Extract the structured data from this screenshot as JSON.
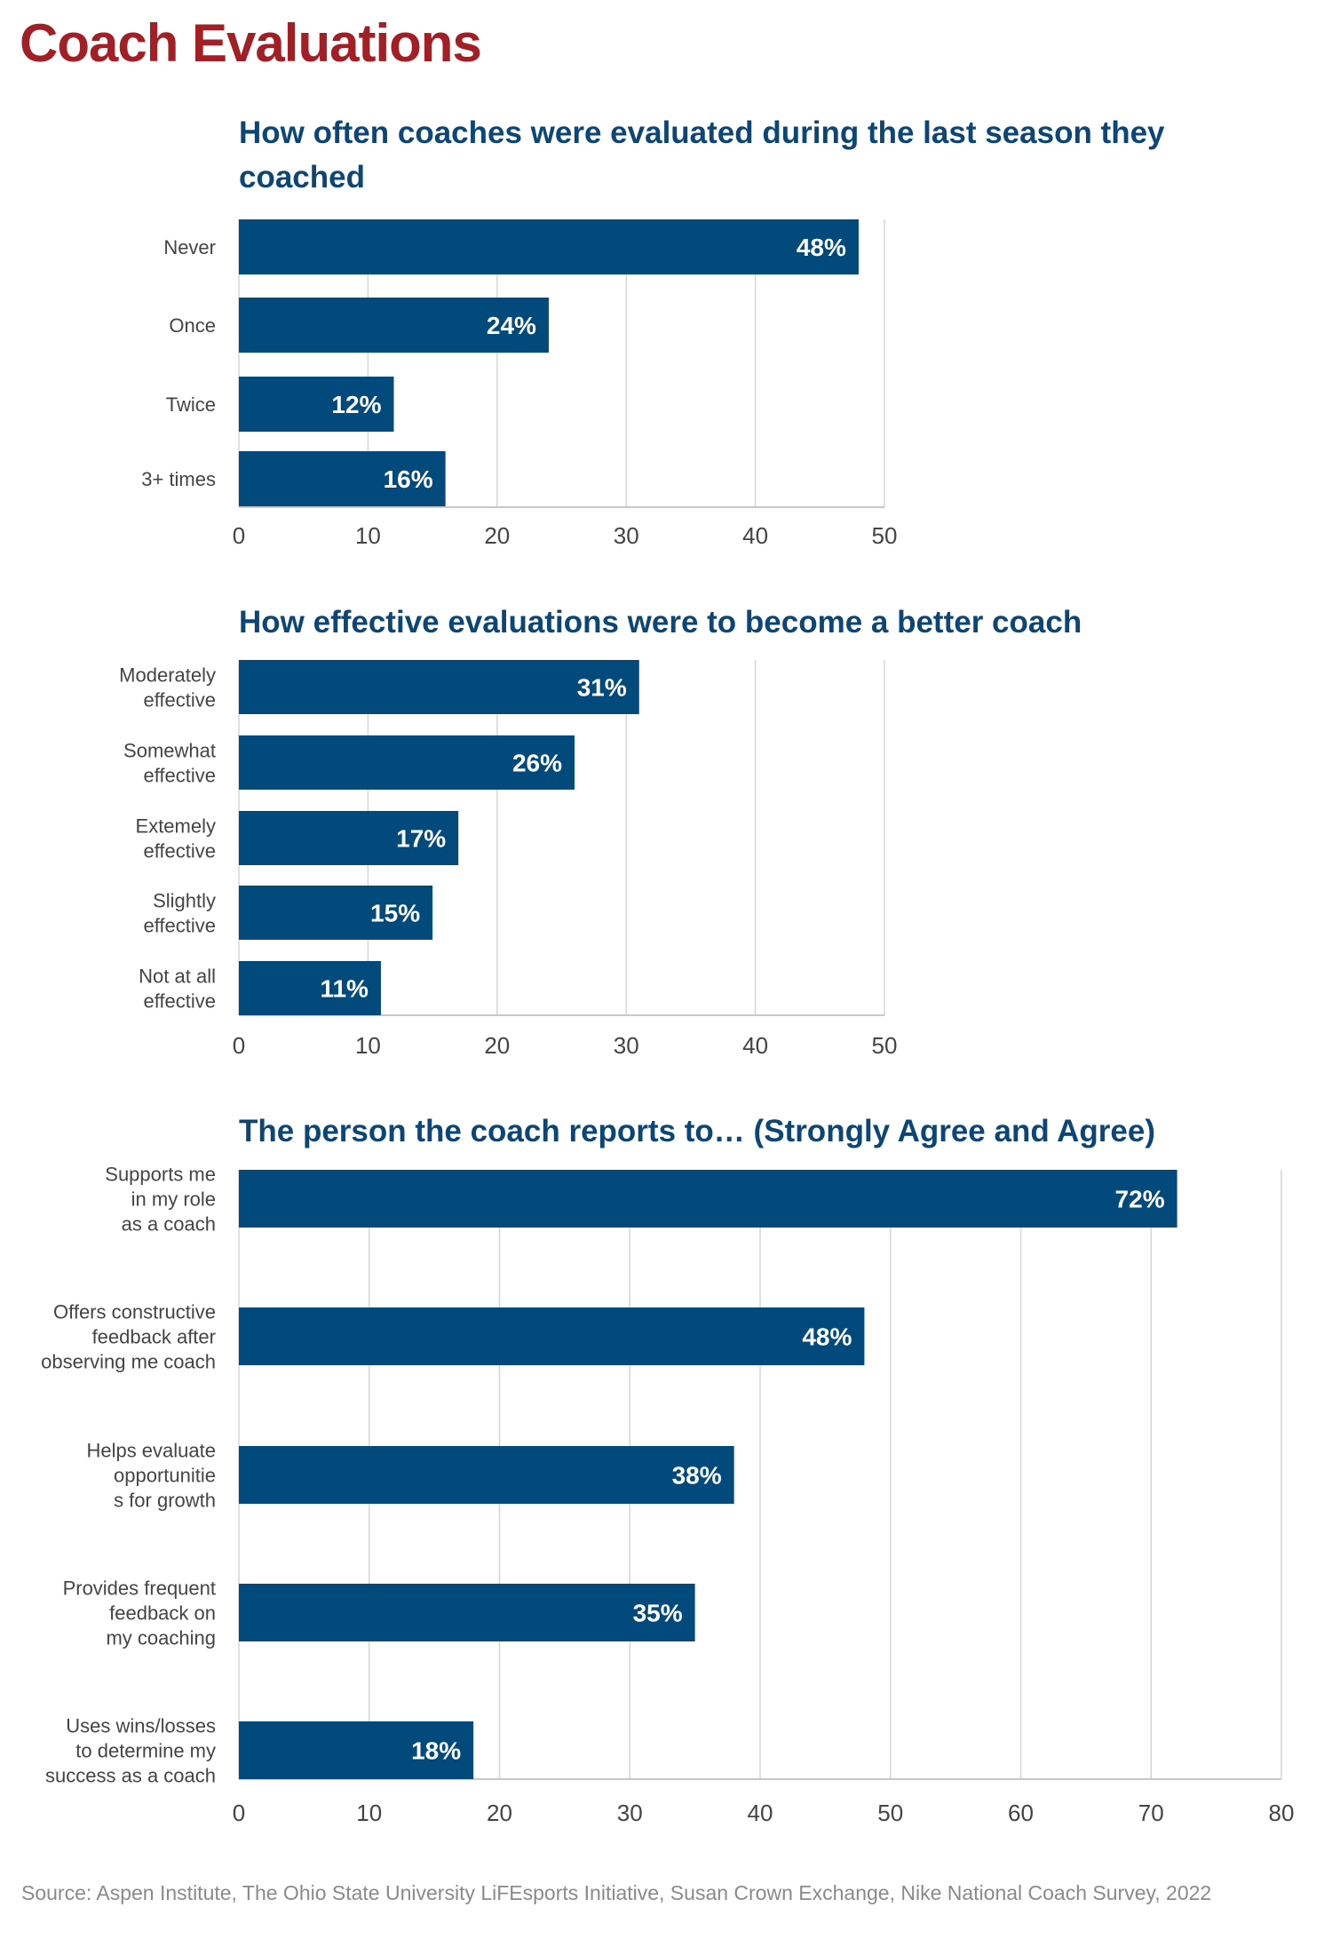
{
  "title": "Coach Evaluations",
  "source": "Source: Aspen Institute, The Ohio State University LiFEsports Initiative, Susan Crown Exchange, Nike National Coach Survey, 2022",
  "colors": {
    "bar": "#034a7c",
    "title": "#a31f26",
    "chart_title": "#0b4677",
    "grid": "#d6d6d6"
  },
  "chart_data": [
    {
      "type": "bar",
      "orientation": "horizontal",
      "title": "How often coaches were evaluated during the last season they coached",
      "categories": [
        "Never",
        "Once",
        "Twice",
        "3+ times"
      ],
      "values": [
        48,
        24,
        12,
        16
      ],
      "data_labels": [
        "48%",
        "24%",
        "12%",
        "16%"
      ],
      "xlim": [
        0,
        50
      ],
      "xticks": [
        0,
        10,
        20,
        30,
        40,
        50
      ],
      "grid": true
    },
    {
      "type": "bar",
      "orientation": "horizontal",
      "title": "How effective evaluations were to become a better coach",
      "categories": [
        [
          "Moderately",
          "effective"
        ],
        [
          "Somewhat",
          "effective"
        ],
        [
          "Extemely",
          "effective"
        ],
        [
          "Slightly",
          "effective"
        ],
        [
          "Not at all",
          "effective"
        ]
      ],
      "values": [
        31,
        26,
        17,
        15,
        11
      ],
      "data_labels": [
        "31%",
        "26%",
        "17%",
        "15%",
        "11%"
      ],
      "xlim": [
        0,
        50
      ],
      "xticks": [
        0,
        10,
        20,
        30,
        40,
        50
      ],
      "grid": true
    },
    {
      "type": "bar",
      "orientation": "horizontal",
      "title": "The person the coach reports to… (Strongly Agree and Agree)",
      "categories": [
        [
          "Supports me",
          "in my role",
          "as a coach"
        ],
        [
          "Offers constructive",
          "feedback after",
          "observing me coach"
        ],
        [
          "Helps evaluate",
          "opportunitie",
          "s for growth"
        ],
        [
          "Provides frequent",
          "feedback on",
          "my coaching"
        ],
        [
          "Uses wins/losses",
          "to determine my",
          "success as a coach"
        ]
      ],
      "values": [
        72,
        48,
        38,
        35,
        18
      ],
      "data_labels": [
        "72%",
        "48%",
        "38%",
        "35%",
        "18%"
      ],
      "xlim": [
        0,
        80
      ],
      "xticks": [
        0,
        10,
        20,
        30,
        40,
        50,
        60,
        70,
        80
      ],
      "grid": true
    }
  ]
}
